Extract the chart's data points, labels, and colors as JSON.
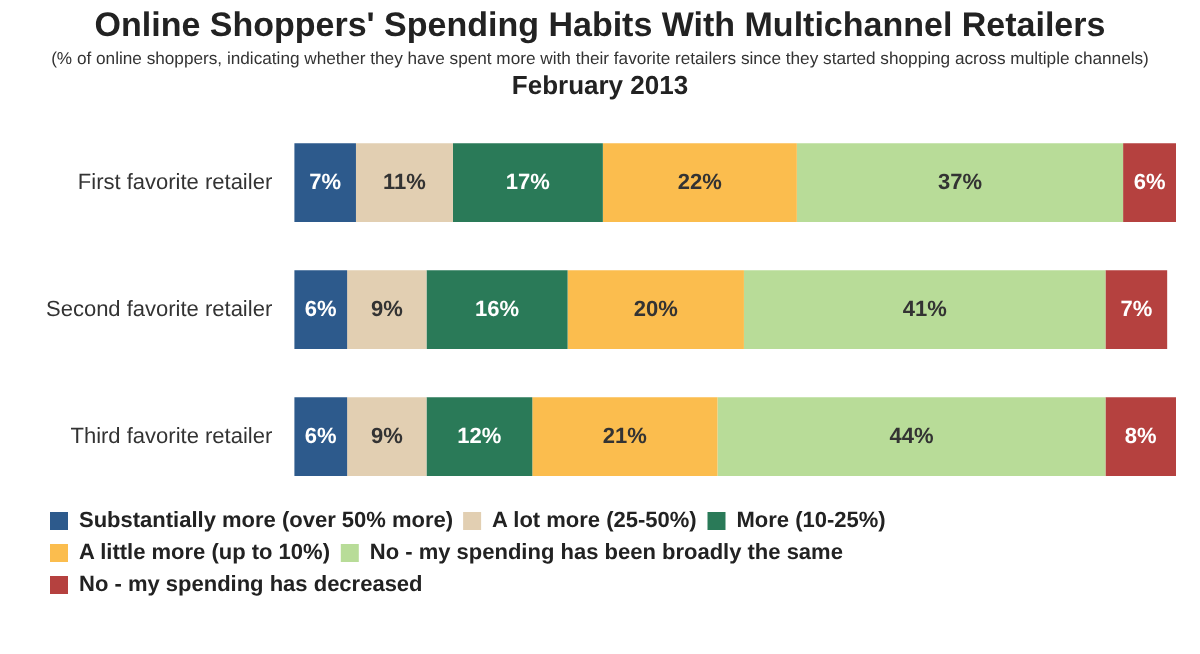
{
  "chart_data": {
    "type": "bar",
    "orientation": "horizontal",
    "stacked": true,
    "title": "Online Shoppers' Spending Habits With Multichannel Retailers",
    "subtitle": "(% of online shoppers, indicating whether they have spent more with their favorite retailers since they started shopping across multiple channels)",
    "annotations": [
      "February 2013"
    ],
    "categories": [
      "First favorite retailer",
      "Second favorite retailer",
      "Third favorite retailer"
    ],
    "series": [
      {
        "name": "Substantially more (over 50% more)",
        "color": "#2d5a8c",
        "values": [
          7,
          6,
          6
        ],
        "value_labels": [
          "7%",
          "6%",
          "6%"
        ]
      },
      {
        "name": "A lot more (25-50%)",
        "color": "#e2cfb2",
        "values": [
          11,
          9,
          9
        ],
        "value_labels": [
          "11%",
          "9%",
          "9%"
        ]
      },
      {
        "name": "More (10-25%)",
        "color": "#2a7a58",
        "values": [
          17,
          16,
          12
        ],
        "value_labels": [
          "17%",
          "16%",
          "12%"
        ]
      },
      {
        "name": "A little more (up to 10%)",
        "color": "#fbbd4e",
        "values": [
          22,
          20,
          21
        ],
        "value_labels": [
          "22%",
          "20%",
          "21%"
        ]
      },
      {
        "name": "No - my spending has been broadly the same",
        "color": "#b8dc98",
        "values": [
          37,
          41,
          44
        ],
        "value_labels": [
          "37%",
          "41%",
          "44%"
        ]
      },
      {
        "name": "No - my spending has decreased",
        "color": "#b5413f",
        "values": [
          6,
          7,
          8
        ],
        "value_labels": [
          "6%",
          "7%",
          "8%"
        ]
      }
    ],
    "legend": "bottom"
  }
}
